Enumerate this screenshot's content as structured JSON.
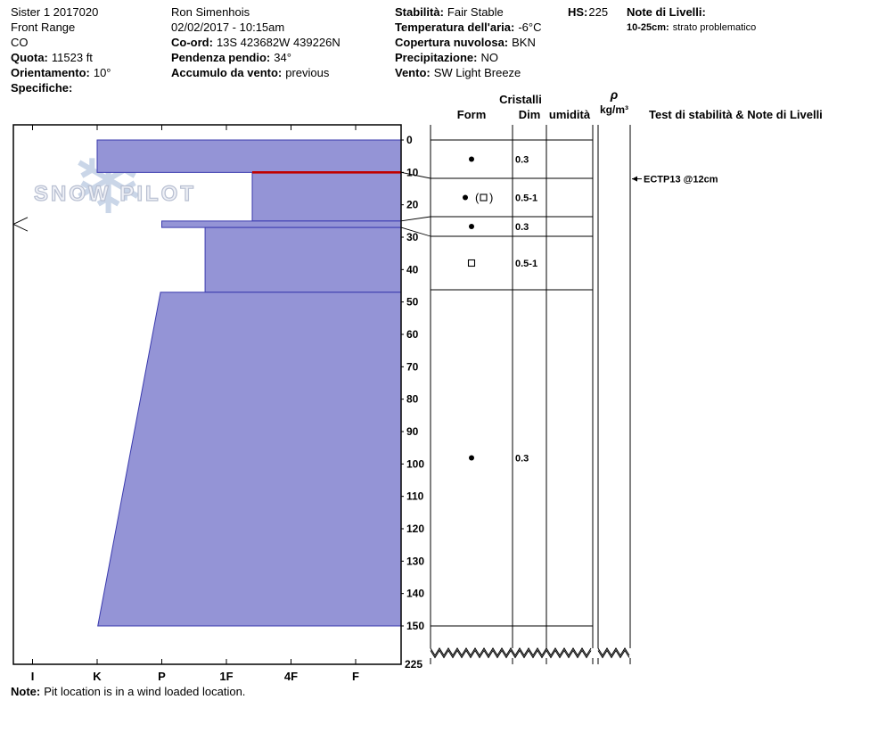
{
  "header": {
    "col1": {
      "pit_name": "Sister 1 2017020",
      "range": "Front Range",
      "state": "CO",
      "elevation_label": "Quota:",
      "elevation_value": "11523 ft",
      "aspect_label": "Orientamento:",
      "aspect_value": "10°",
      "specifics_label": "Specifiche:"
    },
    "col2": {
      "observer": "Ron Simenhois",
      "datetime": "02/02/2017 - 10:15am",
      "coord_label": "Co-ord:",
      "coord_value": "13S 423682W 439226N",
      "slope_label": "Pendenza pendio:",
      "slope_value": "34°",
      "wind_loading_label": "Accumulo da vento:",
      "wind_loading_value": "previous"
    },
    "col3": {
      "stability_label": "Stabilità:",
      "stability_value": "Fair Stable",
      "hs_label": "HS:",
      "hs_value": "225",
      "layer_notes_label": "Note di Livelli:",
      "layer_note_range": "10-25cm:",
      "layer_note_text": "strato problematico",
      "air_temp_label": "Temperatura dell'aria:",
      "air_temp_value": "-6°C",
      "sky_label": "Copertura nuvolosa:",
      "sky_value": "BKN",
      "precip_label": "Precipitazione:",
      "precip_value": "NO",
      "wind_label": "Vento:",
      "wind_value": "SW Light Breeze"
    }
  },
  "table_headers": {
    "cristalli": "Cristalli",
    "form": "Form",
    "dim": "Dim",
    "umidita": "umidità",
    "rho": "ρ",
    "rho_units": "kg/m³",
    "tests": "Test di stabilità & Note di Livelli"
  },
  "watermark": "SNOW PILOT",
  "footnote": {
    "label": "Note:",
    "text": "Pit location is in a wind loaded location."
  },
  "chart_data": {
    "type": "snow-profile",
    "hardness_scale": [
      "I",
      "K",
      "P",
      "1F",
      "4F",
      "F"
    ],
    "depth_ticks": [
      0,
      10,
      20,
      30,
      40,
      50,
      60,
      70,
      80,
      90,
      100,
      110,
      120,
      130,
      140,
      150
    ],
    "total_depth_cm": 225,
    "depth_axis_break": true,
    "layers": [
      {
        "top_cm": 0,
        "bottom_cm": 10,
        "hardness": "K",
        "hardness_top_index": 4.0,
        "hardness_bottom_index": 4.0,
        "form": "●",
        "dim_mm": "0.3",
        "top_line": "blue"
      },
      {
        "top_cm": 10,
        "bottom_cm": 25,
        "hardness": "4F-1F",
        "hardness_top_index": 1.6,
        "hardness_bottom_index": 1.6,
        "form": "● (□)",
        "dim_mm": "0.5-1",
        "top_line": "red",
        "note": "strato problematico"
      },
      {
        "top_cm": 25,
        "bottom_cm": 27,
        "hardness": "P",
        "hardness_top_index": 3.0,
        "hardness_bottom_index": 3.0,
        "form": "●",
        "dim_mm": "0.3",
        "top_line": "blue"
      },
      {
        "top_cm": 27,
        "bottom_cm": 47,
        "hardness": "1F+",
        "hardness_top_index": 2.33,
        "hardness_bottom_index": 2.33,
        "form": "□",
        "dim_mm": "0.5-1",
        "top_line": "blue"
      },
      {
        "top_cm": 47,
        "bottom_cm": 150,
        "hardness": "P to K",
        "hardness_top_index": 3.02,
        "hardness_bottom_index": 3.99,
        "form": "●",
        "dim_mm": "0.3",
        "top_line": "blue"
      }
    ],
    "annotations": [
      {
        "text": "ECTP13 @12cm",
        "depth_cm": 12
      }
    ],
    "colors": {
      "layer_fill": "#9494d6",
      "layer_line": "#3a3aae",
      "problem_line": "#c00000"
    }
  }
}
